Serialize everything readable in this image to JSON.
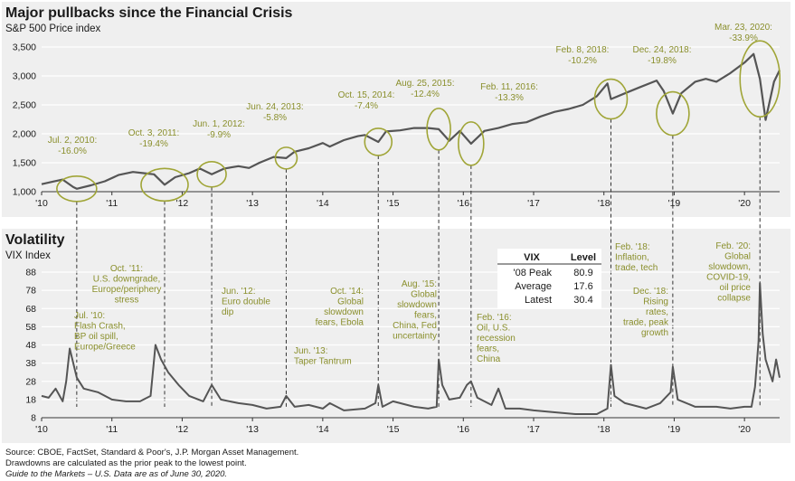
{
  "chart_data": [
    {
      "type": "line",
      "title": "Major pullbacks since the Financial Crisis",
      "ylabel": "S&P 500 Price index",
      "ylim": [
        1000,
        3500
      ],
      "yticks": [
        "1,000",
        "1,500",
        "2,000",
        "2,500",
        "3,000",
        "3,500"
      ],
      "xlim": [
        2010,
        2020.5
      ],
      "xticks": [
        "'10",
        "'11",
        "'12",
        "'13",
        "'14",
        "'15",
        "'16",
        "'17",
        "'18",
        "'19",
        "'20"
      ],
      "series": [
        {
          "x": [
            2010.0,
            2010.15,
            2010.3,
            2010.45,
            2010.5,
            2010.7,
            2010.9,
            2011.1,
            2011.3,
            2011.45,
            2011.6,
            2011.75,
            2011.9,
            2012.1,
            2012.25,
            2012.42,
            2012.6,
            2012.8,
            2012.95,
            2013.1,
            2013.3,
            2013.48,
            2013.6,
            2013.8,
            2014.0,
            2014.1,
            2014.3,
            2014.5,
            2014.6,
            2014.79,
            2014.9,
            2015.1,
            2015.3,
            2015.5,
            2015.65,
            2015.8,
            2015.95,
            2016.11,
            2016.3,
            2016.5,
            2016.7,
            2016.9,
            2017.1,
            2017.3,
            2017.5,
            2017.7,
            2017.9,
            2018.05,
            2018.1,
            2018.3,
            2018.5,
            2018.75,
            2018.85,
            2018.98,
            2019.1,
            2019.3,
            2019.45,
            2019.6,
            2019.8,
            2020.0,
            2020.13,
            2020.22,
            2020.3,
            2020.42,
            2020.5
          ],
          "y": [
            1130,
            1170,
            1210,
            1080,
            1050,
            1110,
            1180,
            1290,
            1340,
            1320,
            1300,
            1120,
            1250,
            1320,
            1400,
            1300,
            1400,
            1440,
            1410,
            1500,
            1600,
            1580,
            1690,
            1750,
            1840,
            1780,
            1890,
            1960,
            1980,
            1860,
            2040,
            2060,
            2100,
            2100,
            2080,
            1880,
            2050,
            1830,
            2050,
            2100,
            2170,
            2200,
            2300,
            2380,
            2430,
            2500,
            2650,
            2870,
            2600,
            2700,
            2800,
            2920,
            2740,
            2350,
            2700,
            2900,
            2950,
            2900,
            3050,
            3230,
            3380,
            2950,
            2240,
            2900,
            3100
          ]
        }
      ],
      "annotations": [
        {
          "date": "Jul. 2, 2010:",
          "drawdown": "-16.0%",
          "x": 2010.5
        },
        {
          "date": "Oct. 3, 2011:",
          "drawdown": "-19.4%",
          "x": 2011.75
        },
        {
          "date": "Jun. 1, 2012:",
          "drawdown": "-9.9%",
          "x": 2012.42
        },
        {
          "date": "Jun. 24, 2013:",
          "drawdown": "-5.8%",
          "x": 2013.48
        },
        {
          "date": "Oct. 15, 2014:",
          "drawdown": "-7.4%",
          "x": 2014.79
        },
        {
          "date": "Aug. 25, 2015:",
          "drawdown": "-12.4%",
          "x": 2015.65
        },
        {
          "date": "Feb. 11, 2016:",
          "drawdown": "-13.3%",
          "x": 2016.11
        },
        {
          "date": "Feb. 8, 2018:",
          "drawdown": "-10.2%",
          "x": 2018.1
        },
        {
          "date": "Dec. 24, 2018:",
          "drawdown": "-19.8%",
          "x": 2018.98
        },
        {
          "date": "Mar. 23, 2020:",
          "drawdown": "-33.9%",
          "x": 2020.22
        }
      ]
    },
    {
      "type": "line",
      "title": "Volatility",
      "ylabel": "VIX Index",
      "ylim": [
        8,
        88
      ],
      "yticks": [
        "8",
        "18",
        "28",
        "38",
        "48",
        "58",
        "68",
        "78",
        "88"
      ],
      "xlim": [
        2010,
        2020.5
      ],
      "xticks": [
        "'10",
        "'11",
        "'12",
        "'13",
        "'14",
        "'15",
        "'16",
        "'17",
        "'18",
        "'19",
        "'20"
      ],
      "series": [
        {
          "x": [
            2010.0,
            2010.1,
            2010.2,
            2010.3,
            2010.35,
            2010.4,
            2010.5,
            2010.6,
            2010.8,
            2011.0,
            2011.2,
            2011.4,
            2011.55,
            2011.62,
            2011.7,
            2011.8,
            2011.95,
            2012.1,
            2012.3,
            2012.42,
            2012.55,
            2012.8,
            2013.0,
            2013.2,
            2013.4,
            2013.48,
            2013.6,
            2013.8,
            2014.0,
            2014.1,
            2014.3,
            2014.6,
            2014.75,
            2014.79,
            2014.85,
            2015.0,
            2015.3,
            2015.5,
            2015.62,
            2015.65,
            2015.7,
            2015.8,
            2015.95,
            2016.05,
            2016.11,
            2016.2,
            2016.4,
            2016.5,
            2016.6,
            2016.8,
            2017.0,
            2017.3,
            2017.6,
            2017.9,
            2018.05,
            2018.1,
            2018.15,
            2018.3,
            2018.6,
            2018.8,
            2018.95,
            2018.98,
            2019.05,
            2019.3,
            2019.6,
            2019.8,
            2020.0,
            2020.1,
            2020.15,
            2020.2,
            2020.22,
            2020.26,
            2020.3,
            2020.35,
            2020.4,
            2020.45,
            2020.5
          ],
          "y": [
            20,
            19,
            24,
            17,
            28,
            46,
            30,
            24,
            22,
            18,
            17,
            17,
            20,
            48,
            40,
            33,
            26,
            20,
            17,
            26,
            18,
            16,
            15,
            13,
            14,
            20,
            14,
            15,
            13,
            16,
            12,
            13,
            16,
            26,
            14,
            17,
            14,
            13,
            14,
            40,
            26,
            18,
            19,
            26,
            28,
            19,
            15,
            24,
            13,
            13,
            12,
            11,
            10,
            10,
            13,
            37,
            20,
            16,
            13,
            16,
            22,
            36,
            18,
            14,
            14,
            13,
            14,
            14,
            25,
            50,
            82,
            54,
            40,
            34,
            28,
            40,
            30
          ]
        }
      ],
      "stats_table": {
        "headers": [
          "VIX",
          "Level"
        ],
        "rows": [
          [
            "'08 Peak",
            "80.9"
          ],
          [
            "Average",
            "17.6"
          ],
          [
            "Latest",
            "30.4"
          ]
        ]
      },
      "annotations": [
        {
          "lines": [
            "Oct. '11:",
            "U.S. downgrade,",
            "Europe/periphery",
            "stress"
          ]
        },
        {
          "lines": [
            "Jul. '10:",
            "Flash Crash,",
            "BP oil spill,",
            "Europe/Greece"
          ]
        },
        {
          "lines": [
            "Jun. '12:",
            "Euro double",
            "dip"
          ]
        },
        {
          "lines": [
            "Jun. '13:",
            "Taper Tantrum"
          ]
        },
        {
          "lines": [
            "Oct. '14:",
            "Global",
            "slowdown",
            "fears, Ebola"
          ]
        },
        {
          "lines": [
            "Aug. '15:",
            "Global",
            "slowdown",
            "fears,",
            "China, Fed",
            "uncertainty"
          ]
        },
        {
          "lines": [
            "Feb. '16:",
            "Oil, U.S.",
            "recession",
            "fears,",
            "China"
          ]
        },
        {
          "lines": [
            "Feb. '18:",
            "Inflation,",
            "trade, tech"
          ]
        },
        {
          "lines": [
            "Dec. '18:",
            "Rising",
            "rates,",
            "trade, peak",
            "growth"
          ]
        },
        {
          "lines": [
            "Feb. '20:",
            "Global",
            "slowdown,",
            "COVID-19,",
            "oil price",
            "collapse"
          ]
        }
      ]
    }
  ],
  "colors": {
    "line": "#555555",
    "annotation": "#8a8f2c",
    "circle": "#a0a537",
    "panel_bg": "#efefef",
    "grid": "#ffffff"
  },
  "footnotes": [
    "Source: CBOE, FactSet, Standard & Poor's, J.P. Morgan Asset Management.",
    "Drawdowns are calculated as the prior peak to the lowest point.",
    "Guide to the Markets – U.S. Data are as of June 30, 2020."
  ]
}
